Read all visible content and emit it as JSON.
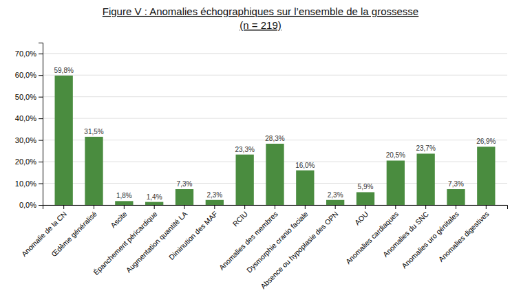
{
  "chart_data": {
    "type": "bar",
    "title": "Figure V : Anomalies échographiques sur l’ensemble de la grossesse",
    "subtitle": "(n = 219)",
    "categories": [
      "Anomalie de la CN",
      "Œdème généralisé",
      "Ascite",
      "Épanchement péricardique",
      "Augmentation quantité LA",
      "Diminution des MAF",
      "RCIU",
      "Anomalies des membres",
      "Dysmorphie cranio faciale",
      "Absence ou hypoplasie des OPN",
      "AOU",
      "Anomalies cardiaques",
      "Anomalies du SNC",
      "Anomalies uro génitales",
      "Anomalies digestives"
    ],
    "values": [
      59.8,
      31.5,
      1.8,
      1.4,
      7.3,
      2.3,
      23.3,
      28.3,
      16.0,
      2.3,
      5.9,
      20.5,
      23.7,
      7.3,
      26.9
    ],
    "value_labels": [
      "59,8%",
      "31,5%",
      "1,8%",
      "1,4%",
      "7,3%",
      "2,3%",
      "23,3%",
      "28,3%",
      "16,0%",
      "2,3%",
      "5,9%",
      "20,5%",
      "23,7%",
      "7,3%",
      "26,9%"
    ],
    "data_labels": true,
    "color": "#4a8c3f",
    "ylim": [
      0,
      75
    ],
    "yticks": [
      {
        "value": 0,
        "label": "0,0%"
      },
      {
        "value": 10,
        "label": "10,0%"
      },
      {
        "value": 20,
        "label": "20,0%"
      },
      {
        "value": 30,
        "label": "30,0%"
      },
      {
        "value": 40,
        "label": "40,0%"
      },
      {
        "value": 50,
        "label": "50,0%"
      },
      {
        "value": 60,
        "label": "60,0%"
      },
      {
        "value": 70,
        "label": "70,0%"
      }
    ],
    "grid": true
  }
}
